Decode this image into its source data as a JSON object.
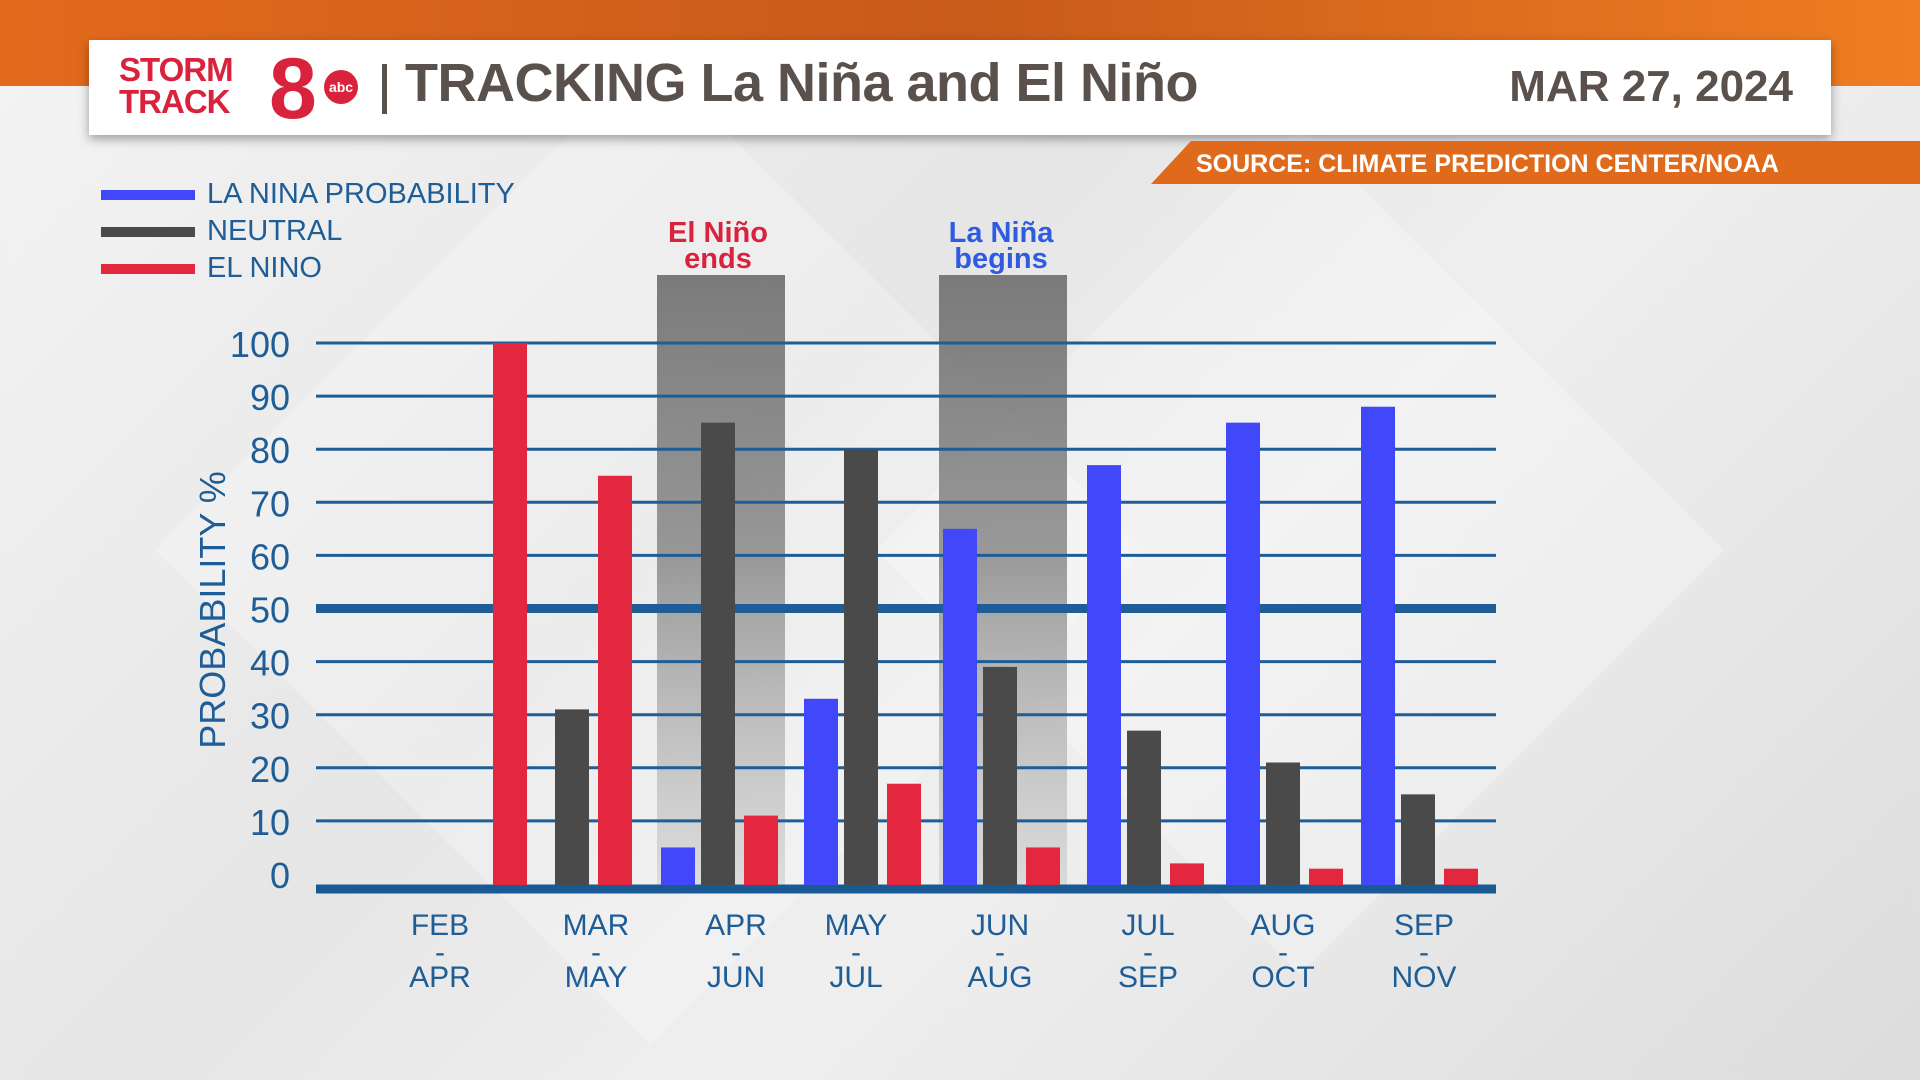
{
  "header": {
    "logo_text": "STORM TRACK 8 abc",
    "title": "TRACKING La Niña and El Niño",
    "date": "MAR 27, 2024",
    "source": "SOURCE: CLIMATE PREDICTION CENTER/NOAA"
  },
  "annotations": [
    {
      "text_line1": "El Niño",
      "text_line2": "ends",
      "color": "#d9233d",
      "category": "APR - JUN"
    },
    {
      "text_line1": "La Niña",
      "text_line2": "begins",
      "color": "#2f5be0",
      "category": "JUN - AUG"
    }
  ],
  "chart_data": {
    "type": "bar",
    "title": "",
    "xlabel": "",
    "ylabel": "PROBABILITY %",
    "ylim": [
      0,
      100
    ],
    "yticks": [
      "0",
      "10",
      "20",
      "30",
      "40",
      "50",
      "60",
      "70",
      "80",
      "90",
      "100"
    ],
    "grid": true,
    "legend_position": "top-left",
    "categories": [
      {
        "top": "FEB",
        "mid": "-",
        "bottom": "APR"
      },
      {
        "top": "MAR",
        "mid": "-",
        "bottom": "MAY"
      },
      {
        "top": "APR",
        "mid": "-",
        "bottom": "JUN"
      },
      {
        "top": "MAY",
        "mid": "-",
        "bottom": "JUL"
      },
      {
        "top": "JUN",
        "mid": "-",
        "bottom": "AUG"
      },
      {
        "top": "JUL",
        "mid": "-",
        "bottom": "SEP"
      },
      {
        "top": "AUG",
        "mid": "-",
        "bottom": "OCT"
      },
      {
        "top": "SEP",
        "mid": "-",
        "bottom": "NOV"
      }
    ],
    "series": [
      {
        "name": "LA NINA PROBABILITY",
        "color": "#4048fa",
        "values": [
          null,
          null,
          5,
          33,
          65,
          77,
          85,
          88
        ]
      },
      {
        "name": "NEUTRAL",
        "color": "#4a4a4a",
        "values": [
          null,
          31,
          85,
          80,
          39,
          27,
          21,
          15
        ]
      },
      {
        "name": "EL NINO",
        "color": "#e3273e",
        "values": [
          100,
          75,
          11,
          17,
          5,
          2,
          1,
          1
        ]
      }
    ]
  }
}
